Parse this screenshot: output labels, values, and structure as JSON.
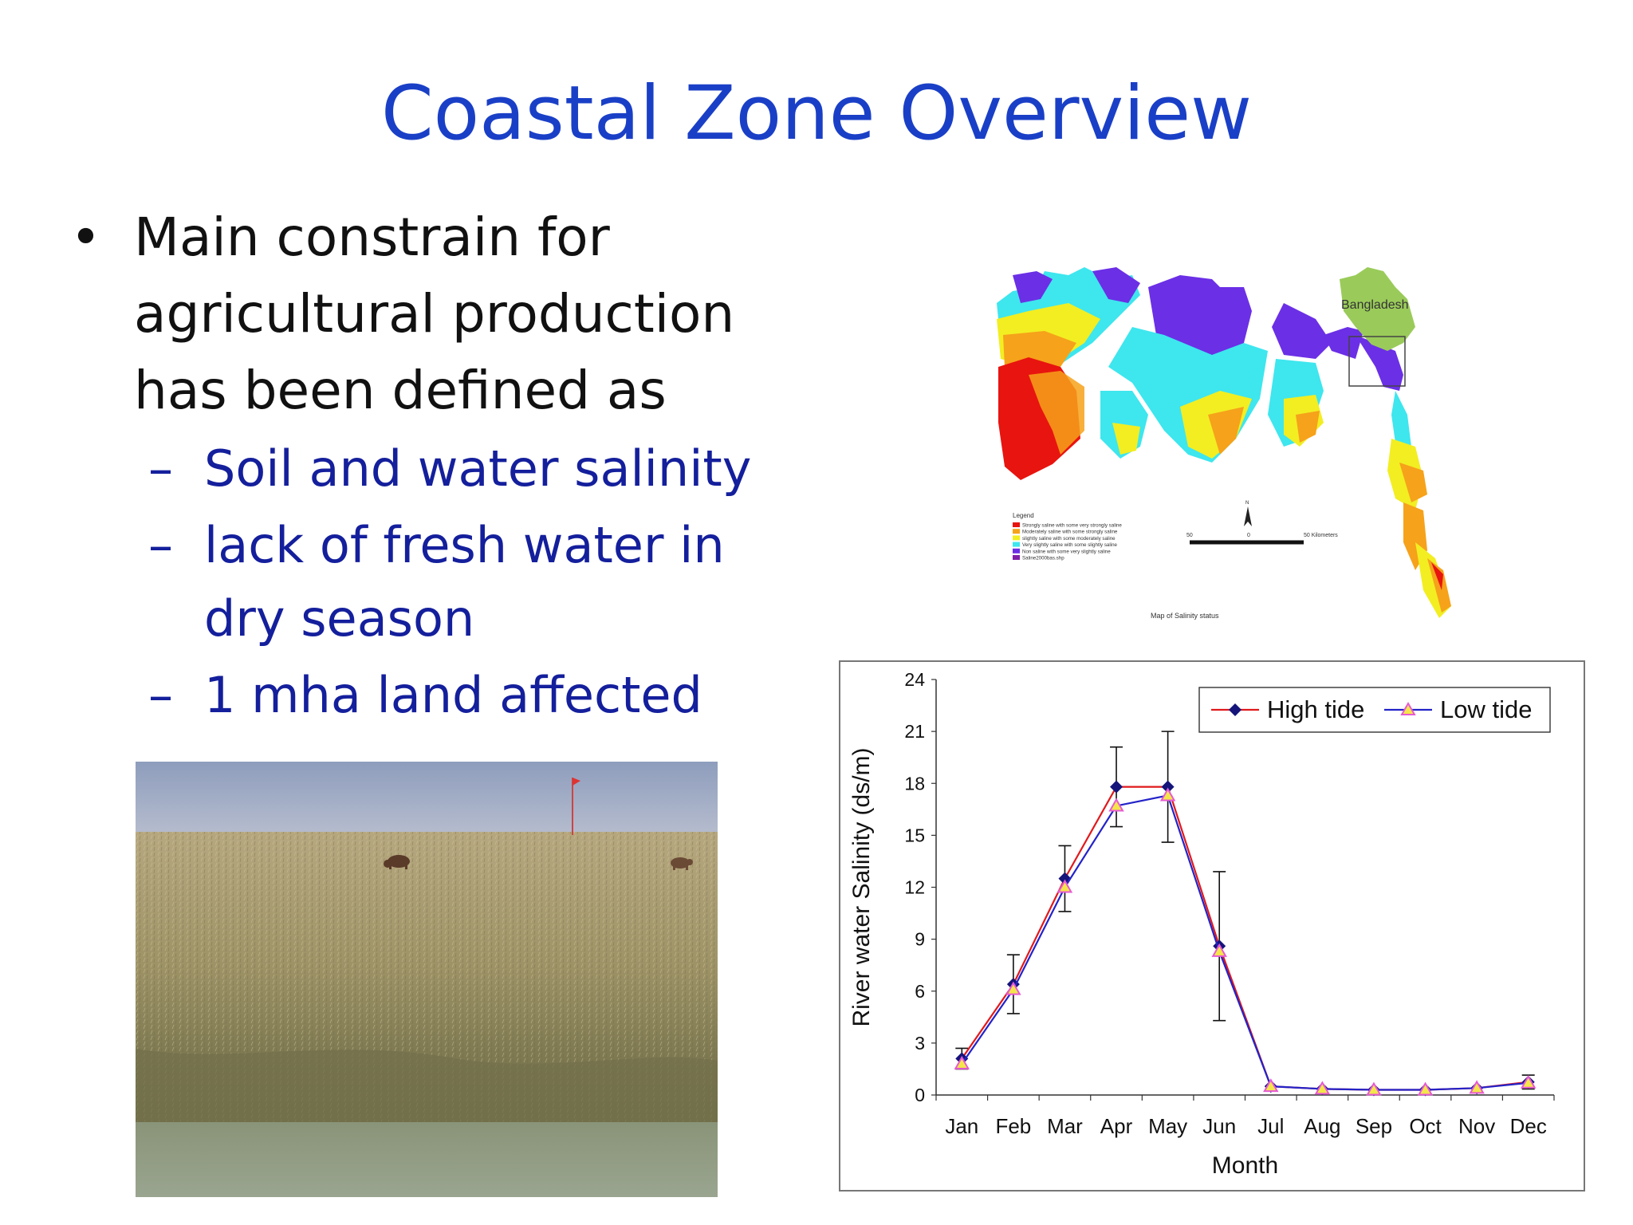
{
  "slide": {
    "title": "Coastal Zone Overview",
    "bullet": "Main constrain for agricultural production has been defined as",
    "bullet_lines": [
      "Main constrain for",
      "agricultural production",
      "has been defined as"
    ],
    "subbullets": [
      {
        "lines": [
          "Soil and water salinity"
        ]
      },
      {
        "lines": [
          "lack of fresh water in",
          "dry season"
        ]
      },
      {
        "lines": [
          "1 mha land affected"
        ]
      }
    ]
  },
  "map": {
    "inset_label": "Bangladesh",
    "legend_title": "Legend",
    "legend": [
      {
        "label": "Strongly saline with some very strongly saline",
        "color": "#e8140f"
      },
      {
        "label": "Moderately saline with some strongly saline",
        "color": "#f6a21a"
      },
      {
        "label": "slightly saline with some moderately saline",
        "color": "#f2ee22"
      },
      {
        "label": "Very slightly saline with some slightly saline",
        "color": "#3ee6ee"
      },
      {
        "label": "Non saline with some very slightly saline",
        "color": "#6b2fe6"
      },
      {
        "label": "Saline2000bas.shp",
        "color": "#7f1fa8"
      }
    ],
    "scale_labels": [
      "50",
      "0",
      "50 Kilometers"
    ],
    "north_label": "N",
    "caption": "Map of Salinity status"
  },
  "chart_data": {
    "type": "line",
    "categories": [
      "Jan",
      "Feb",
      "Mar",
      "Apr",
      "May",
      "Jun",
      "Jul",
      "Aug",
      "Sep",
      "Oct",
      "Nov",
      "Dec"
    ],
    "series": [
      {
        "name": "High tide",
        "color": "#e0191c",
        "marker_color": "#14147a",
        "values": [
          2.1,
          6.4,
          12.5,
          17.8,
          17.8,
          8.6,
          0.5,
          0.35,
          0.3,
          0.3,
          0.4,
          0.75
        ],
        "error": [
          0.6,
          1.7,
          1.9,
          2.3,
          3.2,
          4.3,
          0.0,
          0.0,
          0.0,
          0.0,
          0.0,
          0.4
        ]
      },
      {
        "name": "Low tide",
        "color": "#2323c8",
        "marker_color": "#e65ad2",
        "values": [
          1.8,
          6.1,
          12.0,
          16.7,
          17.3,
          8.3,
          0.5,
          0.35,
          0.3,
          0.3,
          0.4,
          0.7
        ]
      }
    ],
    "ylim": [
      0,
      24
    ],
    "yticks": [
      0,
      3,
      6,
      9,
      12,
      15,
      18,
      21,
      24
    ],
    "ylabel": "River water Salinity (ds/m)",
    "xlabel": "Month",
    "grid": false,
    "legend_position": "top-right"
  }
}
